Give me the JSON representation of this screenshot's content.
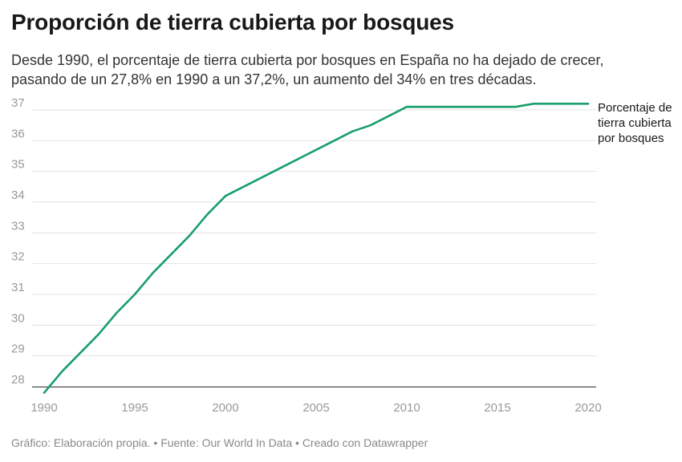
{
  "title": "Proporción de tierra cubierta por bosques",
  "subtitle": "Desde 1990, el porcentaje de tierra cubierta por bosques en España no ha dejado de crecer, pasando de un 27,8% en 1990 a un 37,2%, un aumento del 34% en tres décadas.",
  "footer": "Gráfico: Elaboración propia. • Fuente: Our World In Data • Creado con Datawrapper",
  "colors": {
    "line": "#1a9e6a",
    "grid": "#e3e3e3",
    "tick": "#999999"
  },
  "chart_data": {
    "type": "line",
    "title": "Proporción de tierra cubierta por bosques",
    "xlabel": "",
    "ylabel": "",
    "xlim": [
      1990,
      2020
    ],
    "ylim": [
      28,
      37
    ],
    "grid": true,
    "x_ticks": [
      1990,
      1995,
      2000,
      2005,
      2010,
      2015,
      2020
    ],
    "y_ticks": [
      28,
      29,
      30,
      31,
      32,
      33,
      34,
      35,
      36,
      37
    ],
    "series": [
      {
        "name": "Porcentaje de tierra cubierta por bosques",
        "x": [
          1990,
          1991,
          1992,
          1993,
          1994,
          1995,
          1996,
          1997,
          1998,
          1999,
          2000,
          2001,
          2002,
          2003,
          2004,
          2005,
          2006,
          2007,
          2008,
          2009,
          2010,
          2011,
          2012,
          2013,
          2014,
          2015,
          2016,
          2017,
          2018,
          2019,
          2020
        ],
        "values": [
          27.8,
          28.5,
          29.1,
          29.7,
          30.4,
          31.0,
          31.7,
          32.3,
          32.9,
          33.6,
          34.2,
          34.5,
          34.8,
          35.1,
          35.4,
          35.7,
          36.0,
          36.3,
          36.5,
          36.8,
          37.1,
          37.1,
          37.1,
          37.1,
          37.1,
          37.1,
          37.1,
          37.2,
          37.2,
          37.2,
          37.2
        ]
      }
    ]
  }
}
